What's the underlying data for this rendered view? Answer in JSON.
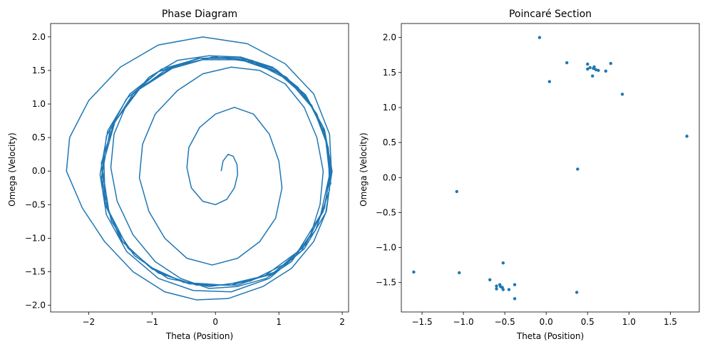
{
  "chart_data": [
    {
      "type": "line",
      "title": "Phase Diagram",
      "xlabel": "Theta (Position)",
      "ylabel": "Omega (Velocity)",
      "xlim": [
        -2.6,
        2.1
      ],
      "ylim": [
        -2.1,
        2.2
      ],
      "xticks": [
        -2,
        -1,
        0,
        1,
        2
      ],
      "yticks": [
        -2.0,
        -1.5,
        -1.0,
        -0.5,
        0.0,
        0.5,
        1.0,
        1.5,
        2.0
      ],
      "xtick_labels": [
        "−2",
        "−1",
        "0",
        "1",
        "2"
      ],
      "ytick_labels": [
        "−2.0",
        "−1.5",
        "−1.0",
        "−0.5",
        "0.0",
        "0.5",
        "1.0",
        "1.5",
        "2.0"
      ],
      "color": "#1f77b4",
      "grid": false,
      "series": [
        {
          "description_points": [
            [
              0.09,
              0.0
            ],
            [
              0.12,
              0.15
            ],
            [
              0.2,
              0.25
            ],
            [
              0.28,
              0.22
            ],
            [
              0.34,
              0.1
            ],
            [
              0.35,
              -0.05
            ],
            [
              0.3,
              -0.25
            ],
            [
              0.18,
              -0.42
            ],
            [
              0.0,
              -0.5
            ],
            [
              -0.2,
              -0.45
            ],
            [
              -0.38,
              -0.25
            ],
            [
              -0.45,
              0.05
            ],
            [
              -0.42,
              0.35
            ],
            [
              -0.25,
              0.65
            ],
            [
              0.0,
              0.85
            ],
            [
              0.3,
              0.95
            ],
            [
              0.6,
              0.85
            ],
            [
              0.85,
              0.55
            ],
            [
              1.0,
              0.15
            ],
            [
              1.05,
              -0.25
            ],
            [
              0.95,
              -0.7
            ],
            [
              0.7,
              -1.05
            ],
            [
              0.35,
              -1.3
            ],
            [
              -0.05,
              -1.4
            ],
            [
              -0.45,
              -1.3
            ],
            [
              -0.8,
              -1.0
            ],
            [
              -1.05,
              -0.6
            ],
            [
              -1.2,
              -0.1
            ],
            [
              -1.15,
              0.4
            ],
            [
              -0.95,
              0.85
            ],
            [
              -0.6,
              1.2
            ],
            [
              -0.2,
              1.45
            ],
            [
              0.25,
              1.55
            ],
            [
              0.7,
              1.5
            ],
            [
              1.1,
              1.3
            ],
            [
              1.4,
              0.95
            ],
            [
              1.6,
              0.5
            ],
            [
              1.7,
              0.0
            ],
            [
              1.65,
              -0.5
            ],
            [
              1.5,
              -0.95
            ],
            [
              1.2,
              -1.35
            ],
            [
              0.8,
              -1.6
            ],
            [
              0.35,
              -1.72
            ],
            [
              -0.1,
              -1.75
            ],
            [
              -0.55,
              -1.6
            ],
            [
              -0.95,
              -1.35
            ],
            [
              -1.3,
              -0.95
            ],
            [
              -1.55,
              -0.45
            ],
            [
              -1.65,
              0.05
            ],
            [
              -1.6,
              0.55
            ],
            [
              -1.4,
              1.0
            ],
            [
              -1.05,
              1.4
            ],
            [
              -0.6,
              1.65
            ],
            [
              -0.1,
              1.72
            ],
            [
              0.4,
              1.7
            ],
            [
              0.9,
              1.55
            ],
            [
              1.3,
              1.25
            ],
            [
              1.6,
              0.85
            ],
            [
              1.78,
              0.35
            ],
            [
              1.82,
              -0.1
            ],
            [
              1.75,
              -0.6
            ],
            [
              1.55,
              -1.05
            ],
            [
              1.2,
              -1.45
            ],
            [
              0.75,
              -1.72
            ],
            [
              0.2,
              -1.9
            ],
            [
              -0.3,
              -1.92
            ],
            [
              -0.8,
              -1.8
            ],
            [
              -1.3,
              -1.5
            ],
            [
              -1.75,
              -1.05
            ],
            [
              -2.1,
              -0.55
            ],
            [
              -2.35,
              0.0
            ],
            [
              -2.3,
              0.5
            ],
            [
              -2.0,
              1.05
            ],
            [
              -1.5,
              1.55
            ],
            [
              -0.9,
              1.88
            ],
            [
              -0.2,
              2.0
            ],
            [
              0.5,
              1.9
            ],
            [
              1.1,
              1.6
            ],
            [
              1.55,
              1.15
            ],
            [
              1.8,
              0.55
            ],
            [
              1.83,
              0.0
            ],
            [
              1.7,
              -0.6
            ],
            [
              1.35,
              -1.2
            ],
            [
              0.85,
              -1.6
            ],
            [
              0.25,
              -1.8
            ],
            [
              -0.35,
              -1.78
            ],
            [
              -0.9,
              -1.6
            ],
            [
              -1.4,
              -1.2
            ],
            [
              -1.72,
              -0.65
            ],
            [
              -1.82,
              -0.05
            ],
            [
              -1.7,
              0.6
            ],
            [
              -1.35,
              1.15
            ],
            [
              -0.85,
              1.52
            ],
            [
              -0.25,
              1.68
            ],
            [
              0.35,
              1.68
            ],
            [
              0.95,
              1.5
            ],
            [
              1.4,
              1.15
            ],
            [
              1.7,
              0.65
            ],
            [
              1.82,
              0.05
            ],
            [
              1.72,
              -0.55
            ],
            [
              1.42,
              -1.1
            ],
            [
              0.95,
              -1.5
            ],
            [
              0.35,
              -1.7
            ],
            [
              -0.3,
              -1.7
            ],
            [
              -0.9,
              -1.52
            ],
            [
              -1.38,
              -1.15
            ],
            [
              -1.68,
              -0.6
            ],
            [
              -1.78,
              0.0
            ],
            [
              -1.66,
              0.62
            ],
            [
              -1.3,
              1.15
            ],
            [
              -0.8,
              1.5
            ],
            [
              -0.2,
              1.66
            ],
            [
              0.4,
              1.66
            ],
            [
              0.98,
              1.47
            ],
            [
              1.45,
              1.08
            ],
            [
              1.73,
              0.55
            ],
            [
              1.8,
              -0.05
            ],
            [
              1.66,
              -0.65
            ],
            [
              1.3,
              -1.2
            ],
            [
              0.78,
              -1.56
            ],
            [
              0.15,
              -1.7
            ],
            [
              -0.5,
              -1.66
            ],
            [
              -1.05,
              -1.42
            ],
            [
              -1.5,
              -1.02
            ],
            [
              -1.74,
              -0.45
            ],
            [
              -1.76,
              0.15
            ],
            [
              -1.58,
              0.75
            ],
            [
              -1.18,
              1.25
            ],
            [
              -0.62,
              1.58
            ],
            [
              0.0,
              1.7
            ],
            [
              0.62,
              1.62
            ],
            [
              1.15,
              1.36
            ],
            [
              1.55,
              0.92
            ],
            [
              1.78,
              0.35
            ],
            [
              1.8,
              -0.28
            ],
            [
              1.58,
              -0.88
            ],
            [
              1.15,
              -1.36
            ],
            [
              0.55,
              -1.64
            ],
            [
              -0.1,
              -1.72
            ],
            [
              -0.75,
              -1.6
            ],
            [
              -1.28,
              -1.26
            ],
            [
              -1.64,
              -0.75
            ],
            [
              -1.8,
              -0.12
            ],
            [
              -1.72,
              0.52
            ],
            [
              -1.4,
              1.08
            ],
            [
              -0.9,
              1.48
            ],
            [
              -0.28,
              1.68
            ],
            [
              0.35,
              1.7
            ],
            [
              0.95,
              1.52
            ],
            [
              1.42,
              1.14
            ],
            [
              1.72,
              0.62
            ],
            [
              1.84,
              0.0
            ],
            [
              1.74,
              -0.62
            ],
            [
              1.4,
              -1.16
            ],
            [
              0.88,
              -1.54
            ],
            [
              0.25,
              -1.7
            ],
            [
              -0.42,
              -1.68
            ],
            [
              -1.0,
              -1.46
            ],
            [
              -1.46,
              -1.06
            ],
            [
              -1.74,
              -0.5
            ],
            [
              -1.8,
              0.12
            ],
            [
              -1.6,
              0.72
            ],
            [
              -1.2,
              1.22
            ],
            [
              -0.65,
              1.55
            ],
            [
              -0.05,
              1.7
            ],
            [
              0.58,
              1.65
            ],
            [
              1.12,
              1.4
            ],
            [
              1.52,
              0.98
            ],
            [
              1.76,
              0.42
            ],
            [
              1.82,
              -0.2
            ]
          ]
        }
      ]
    },
    {
      "type": "scatter",
      "title": "Poincaré Section",
      "xlabel": "Theta (Position)",
      "ylabel": "Omega (Velocity)",
      "xlim": [
        -1.75,
        1.85
      ],
      "ylim": [
        -1.92,
        2.2
      ],
      "xticks": [
        -1.5,
        -1.0,
        -0.5,
        0.0,
        0.5,
        1.0,
        1.5
      ],
      "yticks": [
        -1.5,
        -1.0,
        -0.5,
        0.0,
        0.5,
        1.0,
        1.5,
        2.0
      ],
      "xtick_labels": [
        "−1.5",
        "−1.0",
        "−0.5",
        "0.0",
        "0.5",
        "1.0",
        "1.5"
      ],
      "ytick_labels": [
        "−1.5",
        "−1.0",
        "−0.5",
        "0.0",
        "0.5",
        "1.0",
        "1.5",
        "2.0"
      ],
      "color": "#1f77b4",
      "grid": false,
      "points": [
        [
          -0.08,
          2.0
        ],
        [
          0.04,
          1.37
        ],
        [
          0.25,
          1.64
        ],
        [
          0.5,
          1.62
        ],
        [
          0.53,
          1.57
        ],
        [
          0.5,
          1.55
        ],
        [
          0.57,
          1.56
        ],
        [
          0.58,
          1.58
        ],
        [
          0.6,
          1.54
        ],
        [
          0.56,
          1.45
        ],
        [
          0.63,
          1.53
        ],
        [
          0.72,
          1.52
        ],
        [
          0.78,
          1.63
        ],
        [
          0.92,
          1.19
        ],
        [
          1.7,
          0.59
        ],
        [
          0.38,
          0.12
        ],
        [
          -1.08,
          -0.2
        ],
        [
          -0.52,
          -1.22
        ],
        [
          -1.6,
          -1.35
        ],
        [
          -1.05,
          -1.36
        ],
        [
          -0.68,
          -1.46
        ],
        [
          -0.6,
          -1.55
        ],
        [
          -0.6,
          -1.59
        ],
        [
          -0.56,
          -1.53
        ],
        [
          -0.55,
          -1.56
        ],
        [
          -0.53,
          -1.57
        ],
        [
          -0.52,
          -1.6
        ],
        [
          -0.45,
          -1.6
        ],
        [
          -0.38,
          -1.53
        ],
        [
          -0.38,
          -1.73
        ],
        [
          0.37,
          -1.64
        ]
      ]
    }
  ]
}
